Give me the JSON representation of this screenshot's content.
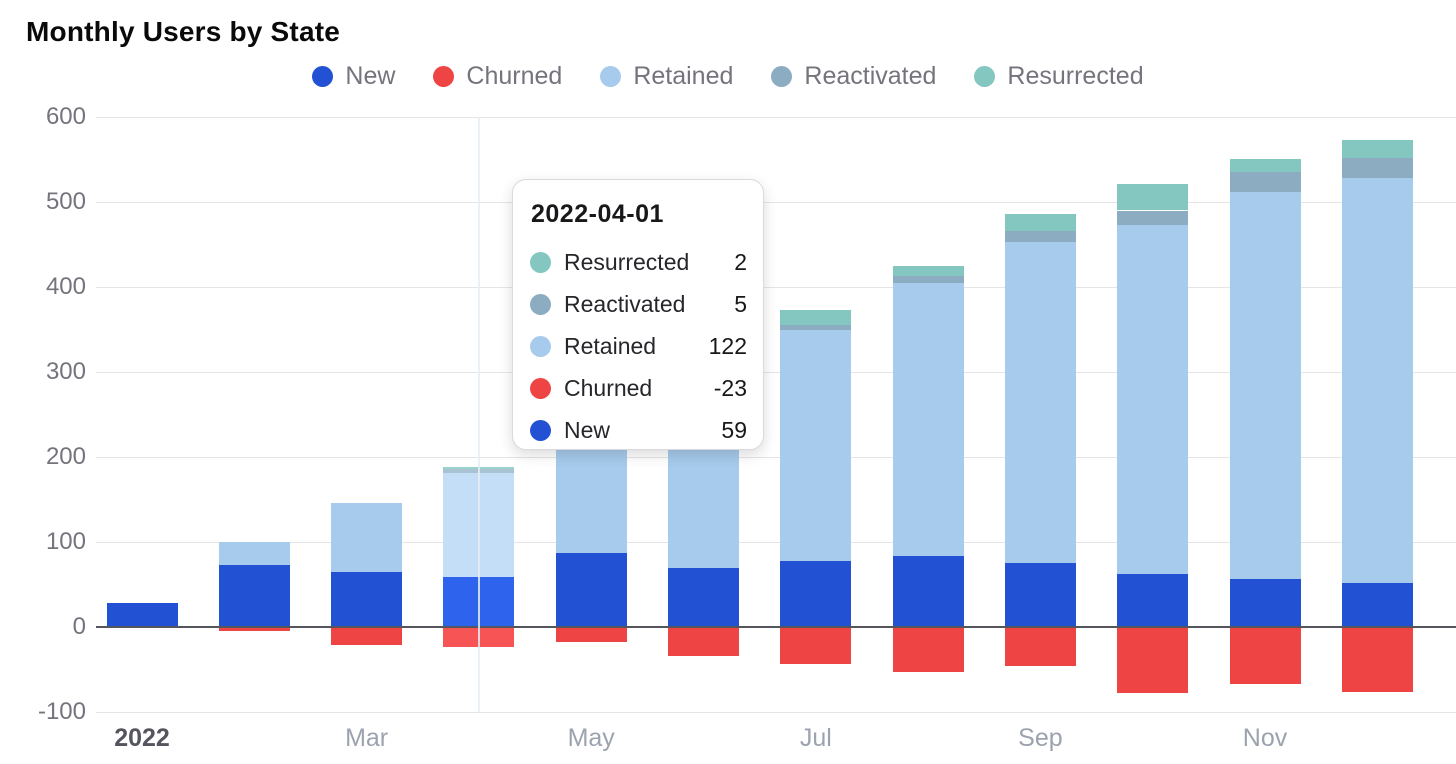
{
  "title": "Monthly Users by State",
  "legend": [
    {
      "label": "New",
      "color": "#2351d3"
    },
    {
      "label": "Churned",
      "color": "#ee4444"
    },
    {
      "label": "Retained",
      "color": "#a6cbec"
    },
    {
      "label": "Reactivated",
      "color": "#8cacc1"
    },
    {
      "label": "Resurrected",
      "color": "#84c6c0"
    }
  ],
  "tooltip": {
    "date": "2022-04-01",
    "rows": [
      {
        "label": "Resurrected",
        "value": "2",
        "color": "#84c6c0"
      },
      {
        "label": "Reactivated",
        "value": "5",
        "color": "#8cacc1"
      },
      {
        "label": "Retained",
        "value": "122",
        "color": "#a6cbec"
      },
      {
        "label": "Churned",
        "value": "-23",
        "color": "#ee4444"
      },
      {
        "label": "New",
        "value": "59",
        "color": "#2351d3"
      }
    ]
  },
  "axes": {
    "y_ticks": [
      600,
      500,
      400,
      300,
      200,
      100,
      0,
      -100
    ],
    "x_ticks": [
      {
        "index": 0,
        "label": "2022",
        "bold": true
      },
      {
        "index": 2,
        "label": "Mar"
      },
      {
        "index": 4,
        "label": "May"
      },
      {
        "index": 6,
        "label": "Jul"
      },
      {
        "index": 8,
        "label": "Sep"
      },
      {
        "index": 10,
        "label": "Nov"
      }
    ]
  },
  "chart_data": {
    "type": "bar",
    "stacked": true,
    "title": "Monthly Users by State",
    "x": [
      "2022-01-01",
      "2022-02-01",
      "2022-03-01",
      "2022-04-01",
      "2022-05-01",
      "2022-06-01",
      "2022-07-01",
      "2022-08-01",
      "2022-09-01",
      "2022-10-01",
      "2022-11-01",
      "2022-12-01"
    ],
    "ylim": [
      -100,
      600
    ],
    "grid": true,
    "legend_position": "top",
    "highlighted_index": 3,
    "series": [
      {
        "name": "New",
        "color": "#2351d3",
        "color_highlight": "#2e63ed",
        "values": [
          28,
          73,
          65,
          59,
          87,
          70,
          78,
          84,
          75,
          62,
          57,
          52
        ]
      },
      {
        "name": "Retained",
        "color": "#a6cbec",
        "color_highlight": "#c5def8",
        "values": [
          0,
          27,
          81,
          122,
          155,
          235,
          271,
          321,
          378,
          411,
          455,
          476
        ]
      },
      {
        "name": "Reactivated",
        "color": "#8cacc1",
        "color_highlight": "#a9c3d4",
        "values": [
          0,
          0,
          0,
          5,
          3,
          5,
          6,
          8,
          13,
          17,
          23,
          24
        ]
      },
      {
        "name": "Resurrected",
        "color": "#84c6c0",
        "color_highlight": "#98d3cc",
        "values": [
          0,
          0,
          0,
          2,
          5,
          8,
          18,
          12,
          20,
          31,
          16,
          21
        ]
      },
      {
        "name": "Churned",
        "color": "#ee4444",
        "color_highlight": "#f75555",
        "values": [
          0,
          -5,
          -21,
          -23,
          -18,
          -34,
          -43,
          -53,
          -46,
          -78,
          -67,
          -76
        ]
      }
    ]
  }
}
